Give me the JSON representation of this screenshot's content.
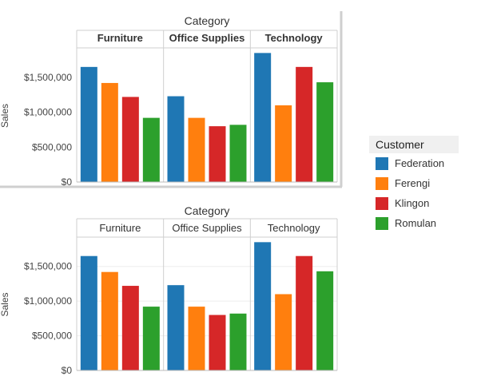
{
  "legend": {
    "title": "Customer",
    "items": [
      {
        "label": "Federation",
        "color": "#1f77b4"
      },
      {
        "label": "Ferengi",
        "color": "#ff7f0e"
      },
      {
        "label": "Klingon",
        "color": "#d62728"
      },
      {
        "label": "Romulan",
        "color": "#2ca02c"
      }
    ]
  },
  "chart_data": [
    {
      "type": "bar",
      "title": "Category",
      "ylabel": "Sales",
      "ylim": [
        0,
        1900000
      ],
      "yticks": [
        {
          "value": 0,
          "label": "$0"
        },
        {
          "value": 500000,
          "label": "$500,000"
        },
        {
          "value": 1000000,
          "label": "$1,000,000"
        },
        {
          "value": 1500000,
          "label": "$1,500,000"
        }
      ],
      "header_style": "bold",
      "grid": false,
      "categories": [
        "Furniture",
        "Office Supplies",
        "Technology"
      ],
      "series": [
        {
          "name": "Federation",
          "color": "#1f77b4",
          "values": [
            1650000,
            1230000,
            1850000
          ]
        },
        {
          "name": "Ferengi",
          "color": "#ff7f0e",
          "values": [
            1420000,
            920000,
            1100000
          ]
        },
        {
          "name": "Klingon",
          "color": "#d62728",
          "values": [
            1220000,
            800000,
            1650000
          ]
        },
        {
          "name": "Romulan",
          "color": "#2ca02c",
          "values": [
            920000,
            820000,
            1430000
          ]
        }
      ]
    },
    {
      "type": "bar",
      "title": "Category",
      "ylabel": "Sales",
      "ylim": [
        0,
        1900000
      ],
      "yticks": [
        {
          "value": 0,
          "label": "$0"
        },
        {
          "value": 500000,
          "label": "$500,000"
        },
        {
          "value": 1000000,
          "label": "$1,000,000"
        },
        {
          "value": 1500000,
          "label": "$1,500,000"
        }
      ],
      "header_style": "normal",
      "grid": true,
      "categories": [
        "Furniture",
        "Office Supplies",
        "Technology"
      ],
      "series": [
        {
          "name": "Federation",
          "color": "#1f77b4",
          "values": [
            1650000,
            1230000,
            1850000
          ]
        },
        {
          "name": "Ferengi",
          "color": "#ff7f0e",
          "values": [
            1420000,
            920000,
            1100000
          ]
        },
        {
          "name": "Klingon",
          "color": "#d62728",
          "values": [
            1220000,
            800000,
            1650000
          ]
        },
        {
          "name": "Romulan",
          "color": "#2ca02c",
          "values": [
            920000,
            820000,
            1430000
          ]
        }
      ]
    }
  ]
}
